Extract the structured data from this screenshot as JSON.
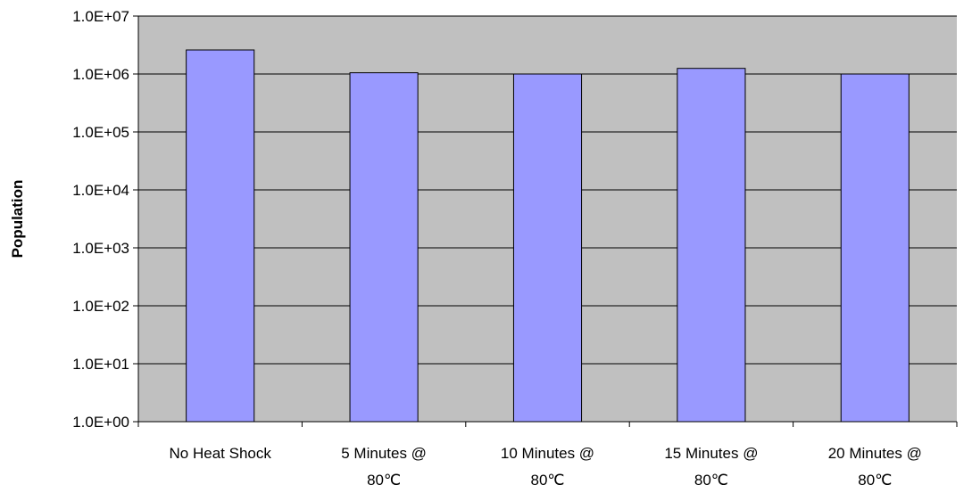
{
  "chart_data": {
    "type": "bar",
    "title": "",
    "xlabel": "",
    "ylabel": "Population",
    "yscale": "log",
    "ylim": [
      1,
      10000000
    ],
    "grid": true,
    "legend": "none",
    "y_ticks": [
      1,
      10,
      100,
      1000,
      10000,
      100000,
      1000000,
      10000000
    ],
    "y_tick_labels": [
      "1.0E+00",
      "1.0E+01",
      "1.0E+02",
      "1.0E+03",
      "1.0E+04",
      "1.0E+05",
      "1.0E+06",
      "1.0E+07"
    ],
    "categories": [
      [
        "No Heat Shock"
      ],
      [
        "5 Minutes @",
        "80℃"
      ],
      [
        "10 Minutes @",
        "80℃"
      ],
      [
        "15 Minutes @",
        "80℃"
      ],
      [
        "20 Minutes @",
        "80℃"
      ]
    ],
    "values": [
      2600000,
      1050000,
      1000000,
      1250000,
      1000000
    ],
    "colors": {
      "plot_background": "#c0c0c0",
      "bar_fill": "#9999ff",
      "bar_stroke": "#000000",
      "grid": "#000000"
    }
  }
}
